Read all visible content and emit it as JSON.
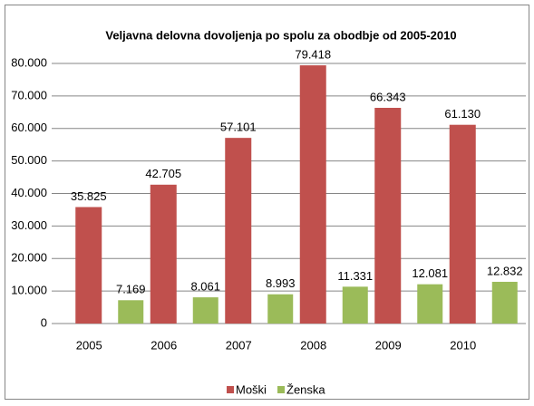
{
  "chart_data": {
    "type": "bar",
    "title": "Veljavna delovna dovoljenja  po spolu za obodbje od 2005-2010",
    "categories": [
      "2005",
      "2006",
      "2007",
      "2008",
      "2009",
      "2010"
    ],
    "series": [
      {
        "name": "Moški",
        "color": "#c0504d",
        "values": [
          35825,
          42705,
          57101,
          79418,
          66343,
          61130
        ],
        "value_labels": [
          "35.825",
          "42.705",
          "57.101",
          "79.418",
          "66.343",
          "61.130"
        ]
      },
      {
        "name": "Ženska",
        "color": "#9bbb59",
        "values": [
          7169,
          8061,
          8993,
          11331,
          12081,
          12832
        ],
        "value_labels": [
          "7.169",
          "8.061",
          "8.993",
          "11.331",
          "12.081",
          "12.832"
        ]
      }
    ],
    "ylim": [
      0,
      80000
    ],
    "yticks": [
      0,
      {
        "value": 10000,
        "label": "10.000"
      },
      {
        "value": 20000,
        "label": "20.000"
      },
      {
        "value": 30000,
        "label": "30.000"
      },
      {
        "value": 40000,
        "label": "40.000"
      },
      {
        "value": 50000,
        "label": "50.000"
      },
      {
        "value": 60000,
        "label": "60.000"
      },
      {
        "value": 70000,
        "label": "70.000"
      },
      {
        "value": 80000,
        "label": "80.000"
      }
    ],
    "grid": true,
    "legend": "bottom"
  }
}
